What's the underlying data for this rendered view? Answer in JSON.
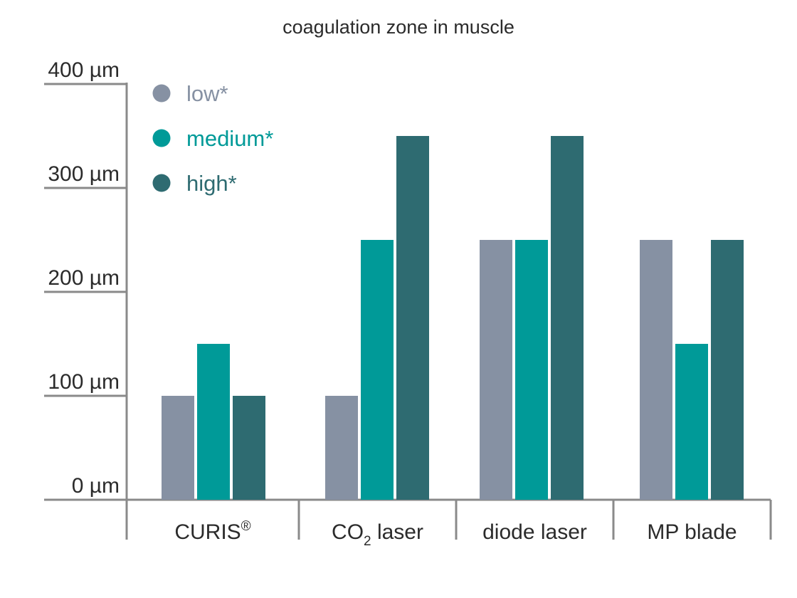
{
  "chart_data": {
    "type": "bar",
    "title": "coagulation zone in muscle",
    "xlabel": "",
    "ylabel": "",
    "ylim": [
      0,
      400
    ],
    "y_ticks": [
      "0 µm",
      "100 µm",
      "200 µm",
      "300 µm",
      "400 µm"
    ],
    "y_tick_values": [
      0,
      100,
      200,
      300,
      400
    ],
    "categories": [
      "CURIS®",
      "CO2 laser",
      "diode laser",
      "MP blade"
    ],
    "category_colors": [
      "#009a98",
      "#2b2b2b",
      "#2b2b2b",
      "#2b2b2b"
    ],
    "series": [
      {
        "name": "low*",
        "color": "#8691a3",
        "values": [
          100,
          100,
          250,
          250
        ]
      },
      {
        "name": "medium*",
        "color": "#009a98",
        "values": [
          150,
          250,
          250,
          150
        ]
      },
      {
        "name": "high*",
        "color": "#2e6b71",
        "values": [
          100,
          350,
          350,
          250
        ]
      }
    ],
    "legend_position": "top-left",
    "grid": false,
    "axis_color": "#8a8a8a"
  }
}
